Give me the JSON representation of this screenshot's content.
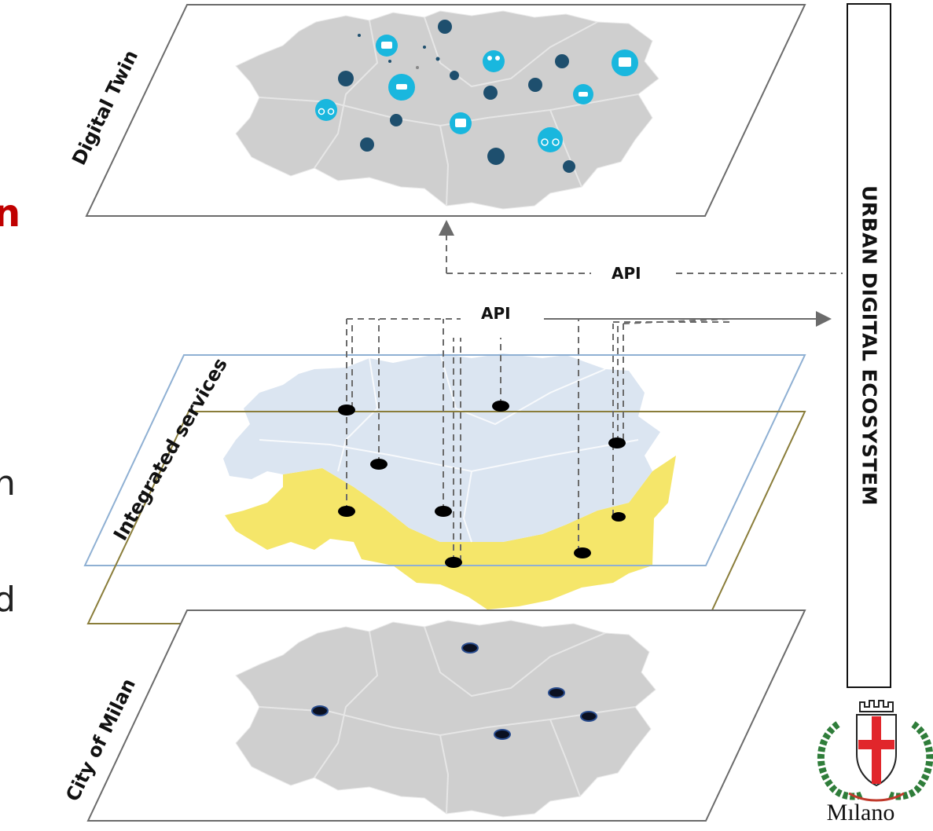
{
  "layers": {
    "top_label": "Digital Twin",
    "middle_label": "Integrated services",
    "bottom_label": "City of Milan"
  },
  "api": {
    "upper_label": "API",
    "lower_label": "API"
  },
  "ecosystem": {
    "label": "URBAN DIGITAL ECOSYSTEM"
  },
  "side_fragments": {
    "red": "n",
    "line2": "n",
    "line3": "d"
  },
  "logo": {
    "city_name": "Mılano"
  },
  "icons": [
    "bus-stop-icon",
    "tram-icon",
    "people-icon",
    "bike-icon",
    "bus-icon",
    "electric-plug-icon",
    "electric-car-icon",
    "scooter-icon",
    "globe-icon",
    "taxi-icon",
    "bicycle-icon",
    "car-sharing-icon",
    "train-icon",
    "parking-icon",
    "thumbs-up-icon",
    "bike-sharing-icon",
    "charging-icon",
    "car-icon"
  ],
  "colors": {
    "map_gray": "#cfcfcf",
    "zone_blue": "#dbe5f1",
    "zone_yellow": "#f5e66a",
    "icon_cyan": "#19b7de",
    "icon_navy": "#1e4f6e",
    "frame_blue": "#8fb0d3",
    "frame_olive": "#8a7d3a",
    "accent_red": "#c00000"
  }
}
